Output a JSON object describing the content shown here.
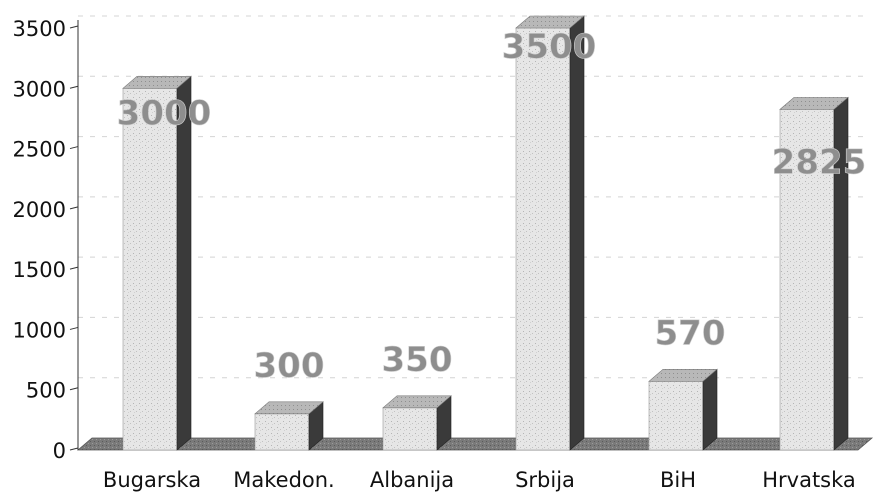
{
  "chart_data": {
    "type": "bar",
    "categories": [
      "Bugarska",
      "Makedon.",
      "Albanija",
      "Srbija",
      "BiH",
      "Hrvatska"
    ],
    "values": [
      3000,
      300,
      350,
      3500,
      570,
      2825
    ],
    "data_labels": [
      "3000",
      "300",
      "350",
      "3500",
      "570",
      "2825"
    ],
    "yticks": [
      "0",
      "500",
      "1000",
      "1500",
      "2000",
      "2500",
      "3000",
      "3500"
    ],
    "ylim": [
      0,
      3500
    ],
    "grid": true,
    "legend": "none",
    "style": "3d-column",
    "colors": {
      "bar_front": "#e6e6e6",
      "bar_top": "#b8b8b8",
      "bar_side": "#3a3a3a",
      "floor": "#7a7a7a",
      "label": "#8e8e8e",
      "axis": "#333333"
    }
  }
}
